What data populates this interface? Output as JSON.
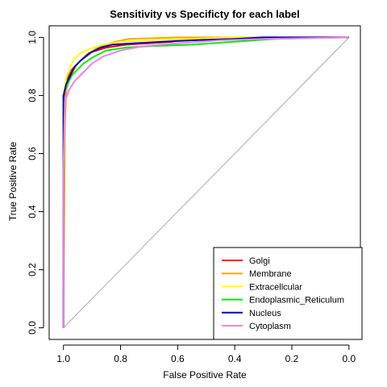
{
  "chart_data": {
    "type": "line",
    "title": "Sensitivity vs Specificty for each label",
    "xlabel": "False Positive Rate",
    "ylabel": "True Positive Rate",
    "xlim": [
      1.05,
      -0.04
    ],
    "ylim": [
      -0.04,
      1.04
    ],
    "x_ticks": [
      {
        "value": 1.0,
        "label": "1.0"
      },
      {
        "value": 0.8,
        "label": "0.8"
      },
      {
        "value": 0.6,
        "label": "0.6"
      },
      {
        "value": 0.4,
        "label": "0.4"
      },
      {
        "value": 0.2,
        "label": "0.2"
      },
      {
        "value": 0.0,
        "label": "0.0"
      }
    ],
    "y_ticks": [
      {
        "value": 0.0,
        "label": "0.0"
      },
      {
        "value": 0.2,
        "label": "0.2"
      },
      {
        "value": 0.4,
        "label": "0.4"
      },
      {
        "value": 0.6,
        "label": "0.6"
      },
      {
        "value": 0.8,
        "label": "0.8"
      },
      {
        "value": 1.0,
        "label": "1.0"
      }
    ],
    "grid": false,
    "legend_position": "bottom-right",
    "diagonal_color": "#aaaaaa",
    "series": [
      {
        "name": "Golgi",
        "color": "#ff0000",
        "points": [
          [
            1.0,
            0.0
          ],
          [
            1.0,
            0.78
          ],
          [
            0.99,
            0.85
          ],
          [
            0.97,
            0.89
          ],
          [
            0.94,
            0.92
          ],
          [
            0.9,
            0.95
          ],
          [
            0.85,
            0.965
          ],
          [
            0.78,
            0.975
          ],
          [
            0.7,
            0.98
          ],
          [
            0.62,
            0.985
          ],
          [
            0.6,
            0.99
          ],
          [
            0.5,
            0.995
          ],
          [
            0.35,
            1.0
          ],
          [
            0.0,
            1.0
          ]
        ]
      },
      {
        "name": "Membrane",
        "color": "#ffa500",
        "points": [
          [
            1.0,
            0.0
          ],
          [
            0.995,
            0.7
          ],
          [
            0.99,
            0.82
          ],
          [
            0.975,
            0.87
          ],
          [
            0.95,
            0.91
          ],
          [
            0.92,
            0.94
          ],
          [
            0.88,
            0.965
          ],
          [
            0.82,
            0.985
          ],
          [
            0.77,
            0.995
          ],
          [
            0.6,
            1.0
          ],
          [
            0.0,
            1.0
          ]
        ]
      },
      {
        "name": "Extracellcular",
        "color": "#ffff00",
        "points": [
          [
            1.0,
            0.0
          ],
          [
            1.0,
            0.8
          ],
          [
            0.99,
            0.86
          ],
          [
            0.975,
            0.9
          ],
          [
            0.96,
            0.93
          ],
          [
            0.94,
            0.945
          ],
          [
            0.91,
            0.96
          ],
          [
            0.86,
            0.975
          ],
          [
            0.8,
            0.985
          ],
          [
            0.7,
            0.99
          ],
          [
            0.55,
            0.995
          ],
          [
            0.4,
            1.0
          ],
          [
            0.0,
            1.0
          ]
        ]
      },
      {
        "name": "Endoplasmic_Reticulum",
        "color": "#00ee00",
        "points": [
          [
            1.0,
            0.0
          ],
          [
            1.0,
            0.8
          ],
          [
            0.99,
            0.83
          ],
          [
            0.97,
            0.87
          ],
          [
            0.95,
            0.89
          ],
          [
            0.93,
            0.91
          ],
          [
            0.9,
            0.93
          ],
          [
            0.85,
            0.955
          ],
          [
            0.78,
            0.965
          ],
          [
            0.7,
            0.97
          ],
          [
            0.55,
            0.975
          ],
          [
            0.4,
            0.985
          ],
          [
            0.26,
            0.995
          ],
          [
            0.0,
            1.0
          ]
        ]
      },
      {
        "name": "Nucleus",
        "color": "#0000cc",
        "points": [
          [
            1.0,
            0.0
          ],
          [
            1.0,
            0.8
          ],
          [
            0.99,
            0.84
          ],
          [
            0.975,
            0.87
          ],
          [
            0.96,
            0.9
          ],
          [
            0.94,
            0.92
          ],
          [
            0.91,
            0.945
          ],
          [
            0.87,
            0.965
          ],
          [
            0.83,
            0.975
          ],
          [
            0.75,
            0.98
          ],
          [
            0.65,
            0.985
          ],
          [
            0.55,
            0.99
          ],
          [
            0.4,
            0.995
          ],
          [
            0.3,
            1.0
          ],
          [
            0.0,
            1.0
          ]
        ]
      },
      {
        "name": "Cytoplasm",
        "color": "#ee82ee",
        "points": [
          [
            1.0,
            0.0
          ],
          [
            1.0,
            0.55
          ],
          [
            0.995,
            0.78
          ],
          [
            0.98,
            0.82
          ],
          [
            0.96,
            0.85
          ],
          [
            0.93,
            0.88
          ],
          [
            0.9,
            0.91
          ],
          [
            0.86,
            0.935
          ],
          [
            0.8,
            0.955
          ],
          [
            0.72,
            0.97
          ],
          [
            0.6,
            0.98
          ],
          [
            0.45,
            0.99
          ],
          [
            0.3,
            0.995
          ],
          [
            0.0,
            1.0
          ]
        ]
      }
    ]
  }
}
